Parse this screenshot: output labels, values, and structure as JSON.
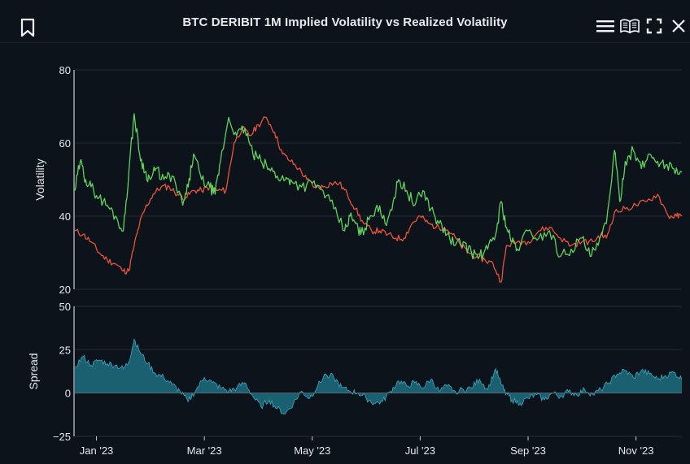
{
  "header": {
    "title": "BTC DERIBIT 1M Implied Volatility vs Realized Volatility",
    "icons": [
      "bookmark-icon",
      "menu-icon",
      "book-icon",
      "fullscreen-icon",
      "close-icon"
    ]
  },
  "colors": {
    "implied": "#5fd35f",
    "realized": "#e8533a",
    "spread_fill": "#1e6e80",
    "spread_line": "#3aa8c0",
    "grid": "#222b34",
    "axis": "#c9ced4"
  },
  "chart_data": [
    {
      "type": "line",
      "title": "BTC DERIBIT 1M Implied Volatility vs Realized Volatility",
      "ylabel": "Volatility",
      "ylim": [
        20,
        80
      ],
      "yticks": [
        "20",
        "40",
        "60",
        "80"
      ],
      "xlim": [
        0,
        11.25
      ],
      "xticks": [
        {
          "label": "Jan '23",
          "month": 0.4
        },
        {
          "label": "Mar '23",
          "month": 2.4
        },
        {
          "label": "May '23",
          "month": 4.4
        },
        {
          "label": "Jul '23",
          "month": 6.4
        },
        {
          "label": "Sep '23",
          "month": 8.4
        },
        {
          "label": "Nov '23",
          "month": 10.4
        }
      ],
      "series": [
        {
          "name": "Implied Volatility",
          "x": [
            0,
            0.1,
            0.2,
            0.3,
            0.45,
            0.6,
            0.75,
            0.9,
            1.0,
            1.1,
            1.2,
            1.3,
            1.4,
            1.5,
            1.65,
            1.8,
            2.0,
            2.1,
            2.2,
            2.35,
            2.5,
            2.6,
            2.7,
            2.85,
            3.0,
            3.15,
            3.3,
            3.45,
            3.6,
            3.75,
            3.9,
            4.0,
            4.2,
            4.4,
            4.6,
            4.8,
            5.0,
            5.1,
            5.2,
            5.3,
            5.45,
            5.6,
            5.75,
            5.9,
            6.0,
            6.15,
            6.3,
            6.45,
            6.6,
            6.75,
            6.9,
            7.05,
            7.2,
            7.35,
            7.5,
            7.65,
            7.8,
            7.9,
            8.0,
            8.1,
            8.2,
            8.4,
            8.6,
            8.8,
            9.0,
            9.2,
            9.4,
            9.55,
            9.7,
            9.85,
            10.0,
            10.1,
            10.2,
            10.35,
            10.5,
            10.65,
            10.8,
            10.95,
            11.1,
            11.25
          ],
          "y": [
            47,
            55,
            50,
            48,
            45,
            43,
            40,
            36,
            52,
            68,
            57,
            52,
            50,
            53,
            50,
            51,
            43,
            48,
            57,
            50,
            48,
            46,
            55,
            67,
            62,
            64,
            57,
            55,
            53,
            51,
            50,
            50,
            48,
            49,
            47,
            42,
            36,
            40,
            38,
            35,
            39,
            43,
            38,
            44,
            50,
            47,
            43,
            47,
            42,
            38,
            35,
            32,
            33,
            30,
            29,
            31,
            35,
            44,
            37,
            33,
            31,
            36,
            34,
            36,
            29,
            31,
            34,
            29,
            32,
            38,
            58,
            44,
            55,
            58,
            53,
            57,
            55,
            54,
            53,
            52
          ]
        },
        {
          "name": "Realized Volatility",
          "x": [
            0,
            0.15,
            0.3,
            0.45,
            0.6,
            0.75,
            0.9,
            1.0,
            1.1,
            1.2,
            1.3,
            1.45,
            1.6,
            1.75,
            1.9,
            2.05,
            2.2,
            2.35,
            2.5,
            2.65,
            2.8,
            2.95,
            3.1,
            3.25,
            3.4,
            3.55,
            3.7,
            3.85,
            4.0,
            4.15,
            4.3,
            4.45,
            4.6,
            4.75,
            4.9,
            5.05,
            5.2,
            5.35,
            5.5,
            5.65,
            5.8,
            5.95,
            6.1,
            6.25,
            6.4,
            6.55,
            6.7,
            6.85,
            7.0,
            7.15,
            7.3,
            7.45,
            7.6,
            7.75,
            7.9,
            8.0,
            8.2,
            8.4,
            8.6,
            8.8,
            9.0,
            9.2,
            9.4,
            9.6,
            9.75,
            9.85,
            10.0,
            10.2,
            10.4,
            10.6,
            10.8,
            11.0,
            11.15,
            11.25
          ],
          "y": [
            36,
            35,
            33,
            30,
            28,
            27,
            25,
            25,
            32,
            38,
            42,
            46,
            48,
            48,
            46,
            45,
            47,
            47,
            48,
            47,
            47,
            60,
            64,
            62,
            65,
            67,
            63,
            57,
            55,
            53,
            50,
            48,
            48,
            49,
            49,
            46,
            42,
            38,
            36,
            36,
            35,
            34,
            34,
            38,
            40,
            38,
            37,
            37,
            35,
            32,
            30,
            29,
            28,
            27,
            22,
            32,
            33,
            33,
            36,
            37,
            34,
            32,
            33,
            33,
            35,
            34,
            41,
            42,
            43,
            44,
            46,
            40,
            40,
            40
          ]
        }
      ]
    },
    {
      "type": "area",
      "ylabel": "Spread",
      "ylim": [
        -25,
        50
      ],
      "yticks": [
        "−25",
        "0",
        "25",
        "50"
      ],
      "series": [
        {
          "name": "Spread",
          "x": [
            0,
            0.15,
            0.3,
            0.45,
            0.6,
            0.75,
            0.9,
            1.0,
            1.1,
            1.2,
            1.35,
            1.5,
            1.65,
            1.8,
            1.95,
            2.1,
            2.25,
            2.4,
            2.55,
            2.7,
            2.85,
            3.0,
            3.15,
            3.3,
            3.45,
            3.6,
            3.75,
            3.9,
            4.05,
            4.2,
            4.35,
            4.5,
            4.65,
            4.8,
            4.95,
            5.1,
            5.25,
            5.4,
            5.55,
            5.7,
            5.85,
            6.0,
            6.15,
            6.3,
            6.45,
            6.6,
            6.75,
            6.9,
            7.05,
            7.2,
            7.35,
            7.5,
            7.65,
            7.8,
            7.9,
            8.0,
            8.1,
            8.25,
            8.4,
            8.55,
            8.7,
            8.85,
            9.0,
            9.15,
            9.3,
            9.45,
            9.6,
            9.75,
            9.9,
            10.05,
            10.2,
            10.35,
            10.5,
            10.65,
            10.8,
            10.95,
            11.1,
            11.25
          ],
          "y": [
            15,
            21,
            16,
            19,
            17,
            16,
            14,
            18,
            31,
            24,
            17,
            11,
            9,
            5,
            1,
            -5,
            2,
            9,
            6,
            3,
            1,
            3,
            6,
            -2,
            -8,
            -4,
            -9,
            -12,
            -6,
            1,
            -3,
            4,
            11,
            9,
            3,
            1,
            0,
            -3,
            -6,
            -5,
            1,
            7,
            4,
            6,
            3,
            8,
            1,
            4,
            1,
            2,
            3,
            8,
            2,
            14,
            5,
            0,
            -4,
            -6,
            -3,
            -1,
            -4,
            0,
            -2,
            1,
            -1,
            2,
            -1,
            2,
            6,
            11,
            13,
            9,
            13,
            11,
            8,
            10,
            12,
            8
          ]
        }
      ]
    }
  ]
}
